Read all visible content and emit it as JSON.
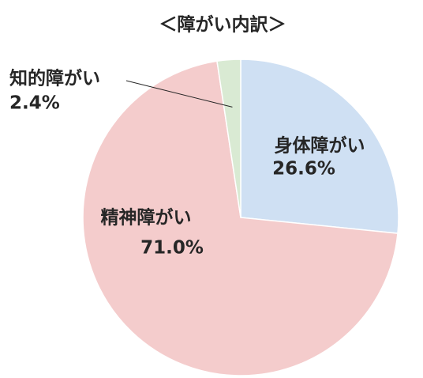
{
  "chart_data": {
    "type": "pie",
    "title": "＜障がい内訳＞",
    "categories": [
      "身体障がい",
      "精神障がい",
      "知的障がい"
    ],
    "values": [
      26.6,
      71.0,
      2.4
    ],
    "value_labels": [
      "26.6%",
      "71.0%",
      "2.4%"
    ],
    "colors": [
      "#cfe0f3",
      "#f4cccc",
      "#d9ead3"
    ]
  }
}
